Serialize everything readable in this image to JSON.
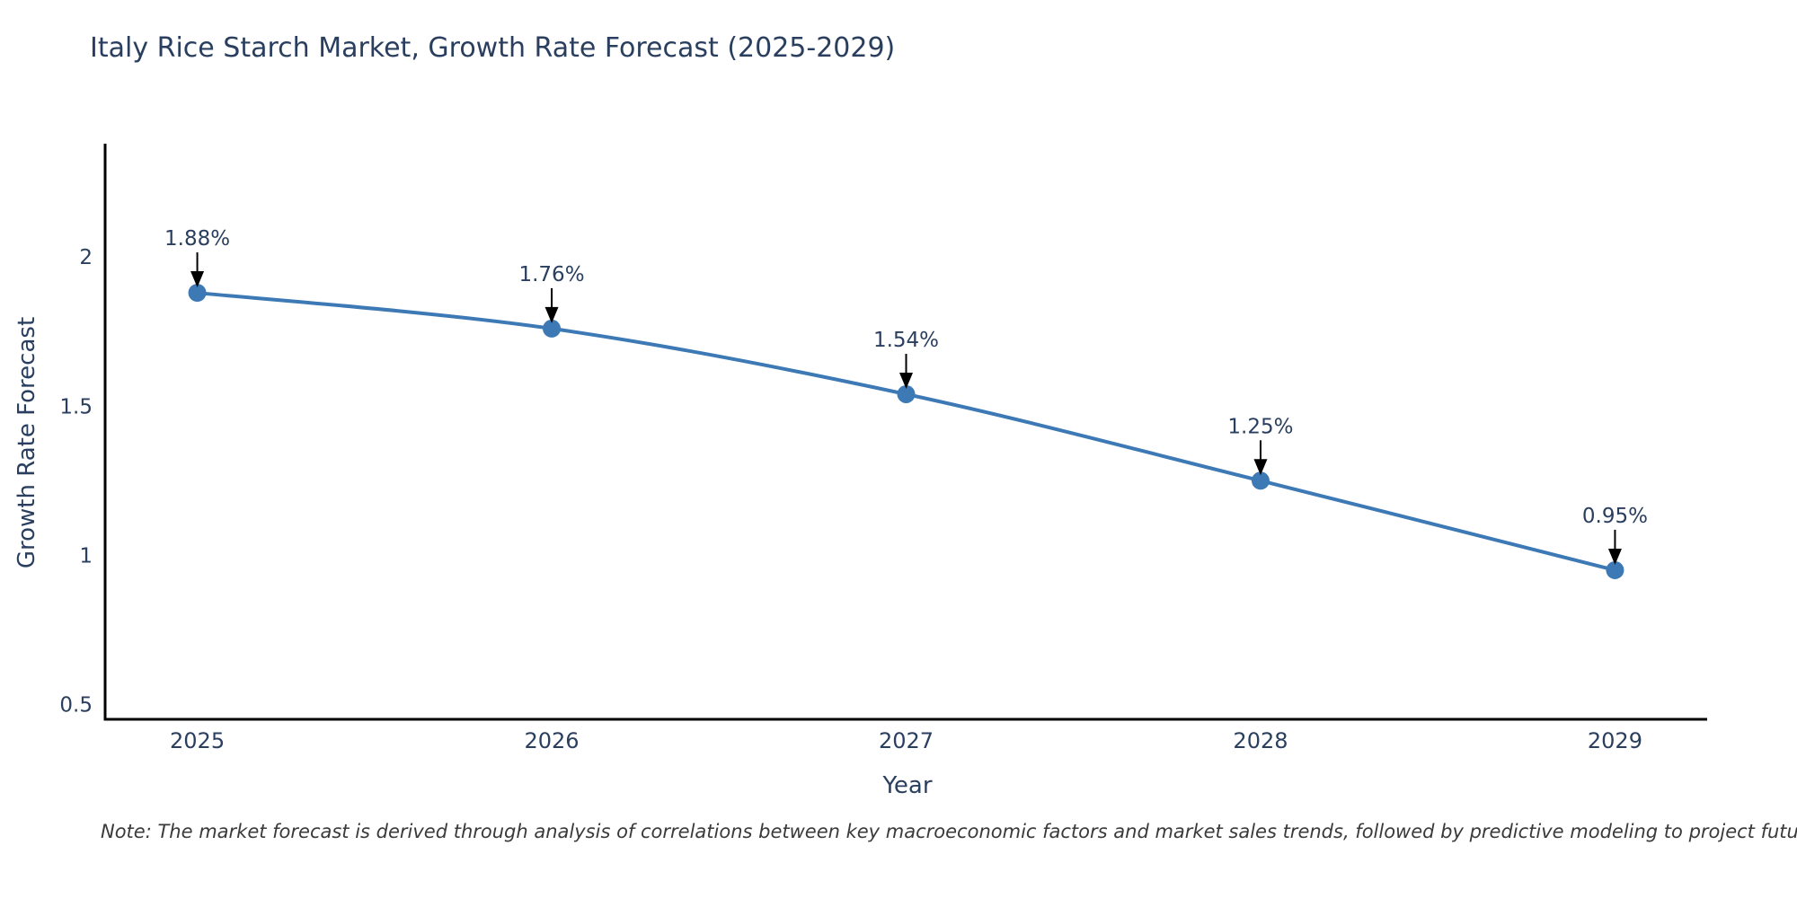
{
  "header": {
    "title": "Italy Rice Starch Market, Growth Rate Forecast (2025-2029)"
  },
  "footnote": {
    "text": "Note: The market forecast is derived through analysis of correlations between key macroeconomic factors and market sales trends, followed by predictive modeling to project future sales"
  },
  "chart_data": {
    "type": "line",
    "title": "Italy Rice Starch Market, Growth Rate Forecast (2025-2029)",
    "x": [
      2025,
      2026,
      2027,
      2028,
      2029
    ],
    "series": [
      {
        "name": "Growth Rate Forecast",
        "values": [
          1.88,
          1.76,
          1.54,
          1.25,
          0.95
        ]
      }
    ],
    "point_labels": [
      "1.88%",
      "1.76%",
      "1.54%",
      "1.25%",
      "0.95%"
    ],
    "xlabel": "Year",
    "ylabel": "Growth Rate Forecast",
    "x_tick_labels": [
      "2025",
      "2026",
      "2027",
      "2028",
      "2029"
    ],
    "y_tick_labels": [
      "2",
      "1.5",
      "1",
      "0.5"
    ],
    "y_tick_values": [
      2,
      1.5,
      1,
      0.5
    ],
    "xlim": [
      2024.74,
      2029.26
    ],
    "ylim": [
      0.45,
      2.38
    ],
    "grid": false,
    "legend": "none",
    "line_shape": "spline",
    "annotations": "value labels above each point with downward black arrows",
    "colors": {
      "line": "#3c79b5",
      "marker": "#3c79b5",
      "axis": "#000000",
      "tick_text": "#2a3f5f",
      "title_text": "#2a3f5f",
      "annotation_text": "#2a3f5f",
      "annotation_arrow": "#000000",
      "note_text": "#3a3a3a",
      "background": "#ffffff"
    }
  }
}
